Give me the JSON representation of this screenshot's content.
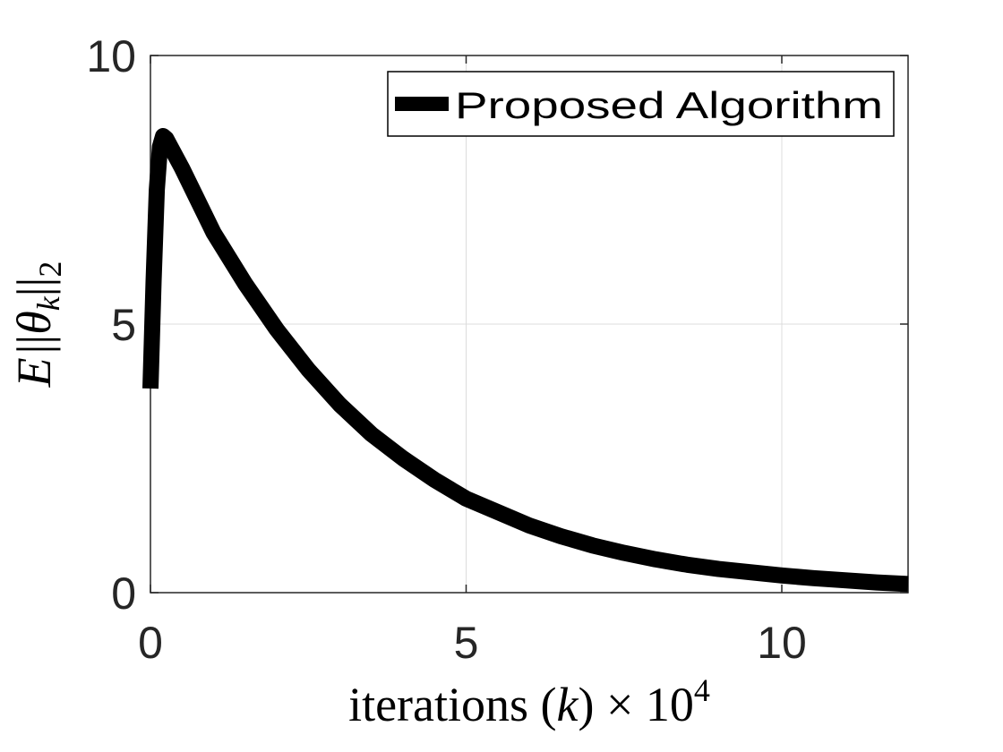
{
  "chart_data": {
    "type": "line",
    "title": "",
    "xlabel": "iterations (k) × 10⁴",
    "xlabel_parts": {
      "main": "iterations (",
      "var": "k",
      "close": ") × 10",
      "exp": "4"
    },
    "ylabel": "E||θk||2",
    "ylabel_parts": {
      "e": "E",
      "bars1": "||",
      "theta": "θ",
      "sub": "k",
      "bars2": "||",
      "sub2": "2"
    },
    "xlim": [
      0,
      12
    ],
    "ylim": [
      0,
      10
    ],
    "xticks": [
      0,
      5,
      10
    ],
    "yticks": [
      0,
      5,
      10
    ],
    "xtick_labels": [
      "0",
      "5",
      "10"
    ],
    "ytick_labels": [
      "0",
      "5",
      "10"
    ],
    "grid": true,
    "legend_position": "top-right",
    "series": [
      {
        "name": "Proposed Algorithm",
        "color": "#000000",
        "x": [
          0,
          0.05,
          0.1,
          0.15,
          0.2,
          0.25,
          0.5,
          0.75,
          1,
          1.5,
          2,
          2.5,
          3,
          3.5,
          4,
          4.5,
          5,
          5.5,
          6,
          6.5,
          7,
          7.5,
          8,
          8.5,
          9,
          9.5,
          10,
          10.5,
          11,
          11.5,
          12
        ],
        "y": [
          3.8,
          5.8,
          7.5,
          8.3,
          8.5,
          8.45,
          7.9,
          7.3,
          6.7,
          5.75,
          4.9,
          4.15,
          3.5,
          2.95,
          2.5,
          2.1,
          1.75,
          1.5,
          1.25,
          1.05,
          0.88,
          0.74,
          0.62,
          0.52,
          0.44,
          0.38,
          0.32,
          0.27,
          0.23,
          0.19,
          0.16
        ]
      }
    ]
  }
}
